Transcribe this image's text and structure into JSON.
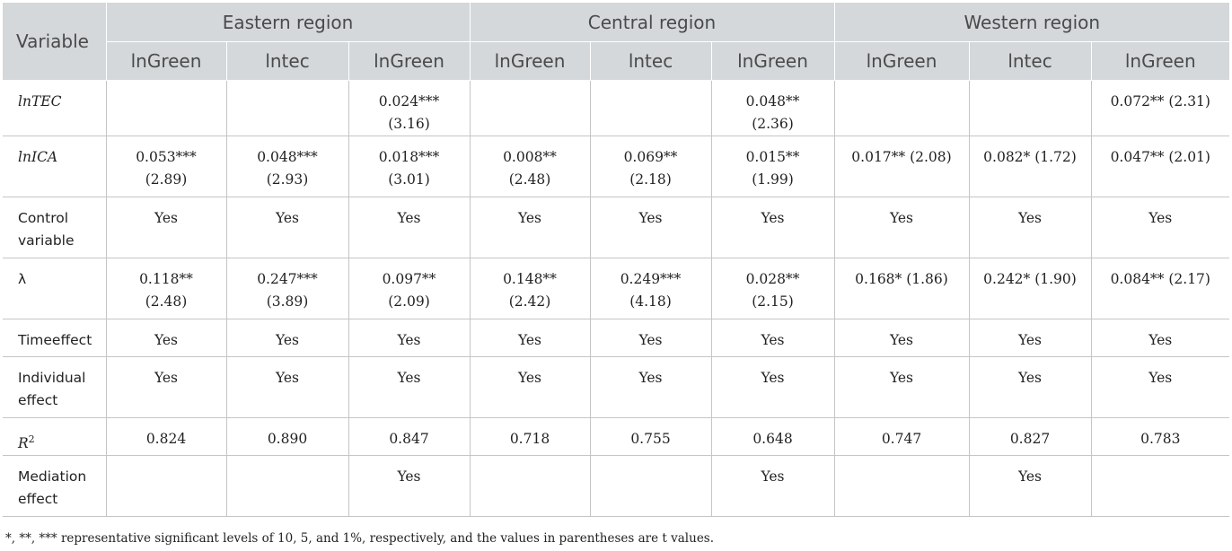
{
  "header": {
    "variable": "Variable",
    "regions": [
      "Eastern region",
      "Central region",
      "Western region"
    ],
    "columns": [
      "lnGreen",
      "lntec",
      "lnGreen",
      "lnGreen",
      "lntec",
      "lnGreen",
      "lnGreen",
      "lntec",
      "lnGreen"
    ]
  },
  "rows": [
    {
      "label": "lnTEC",
      "italic": true,
      "cells": [
        "",
        "",
        "0.024***\n(3.16)",
        "",
        "",
        "0.048**\n(2.36)",
        "",
        "",
        "0.072** (2.31)"
      ]
    },
    {
      "label": "lnICA",
      "italic": true,
      "cells": [
        "0.053***\n(2.89)",
        "0.048***\n(2.93)",
        "0.018***\n(3.01)",
        "0.008**\n(2.48)",
        "0.069**\n(2.18)",
        "0.015**\n(1.99)",
        "0.017** (2.08)",
        "0.082* (1.72)",
        "0.047** (2.01)"
      ]
    },
    {
      "label": "Control\nvariable",
      "italic": false,
      "cells": [
        "Yes",
        "Yes",
        "Yes",
        "Yes",
        "Yes",
        "Yes",
        "Yes",
        "Yes",
        "Yes"
      ]
    },
    {
      "label": "λ",
      "italic": false,
      "cells": [
        "0.118**\n(2.48)",
        "0.247***\n(3.89)",
        "0.097**\n(2.09)",
        "0.148**\n(2.42)",
        "0.249***\n(4.18)",
        "0.028**\n(2.15)",
        "0.168* (1.86)",
        "0.242* (1.90)",
        "0.084** (2.17)"
      ]
    },
    {
      "label": "Timeeffect",
      "italic": false,
      "cells": [
        "Yes",
        "Yes",
        "Yes",
        "Yes",
        "Yes",
        "Yes",
        "Yes",
        "Yes",
        "Yes"
      ]
    },
    {
      "label": "Individual\neffect",
      "italic": false,
      "cells": [
        "Yes",
        "Yes",
        "Yes",
        "Yes",
        "Yes",
        "Yes",
        "Yes",
        "Yes",
        "Yes"
      ]
    },
    {
      "label": "R",
      "label_sup": "2",
      "italic": true,
      "cells": [
        "0.824",
        "0.890",
        "0.847",
        "0.718",
        "0.755",
        "0.648",
        "0.747",
        "0.827",
        "0.783"
      ]
    },
    {
      "label": "Mediation\neffect",
      "italic": false,
      "cells": [
        "",
        "",
        "Yes",
        "",
        "",
        "Yes",
        "",
        "Yes",
        ""
      ]
    }
  ],
  "footnote": "*, **, *** representative significant levels of 10, 5, and 1%, respectively, and the values in parentheses are t values.",
  "colors": {
    "header_bg": "#d5d8da",
    "header_text": "#4a4a4a",
    "grid": "#c5c5c5"
  }
}
